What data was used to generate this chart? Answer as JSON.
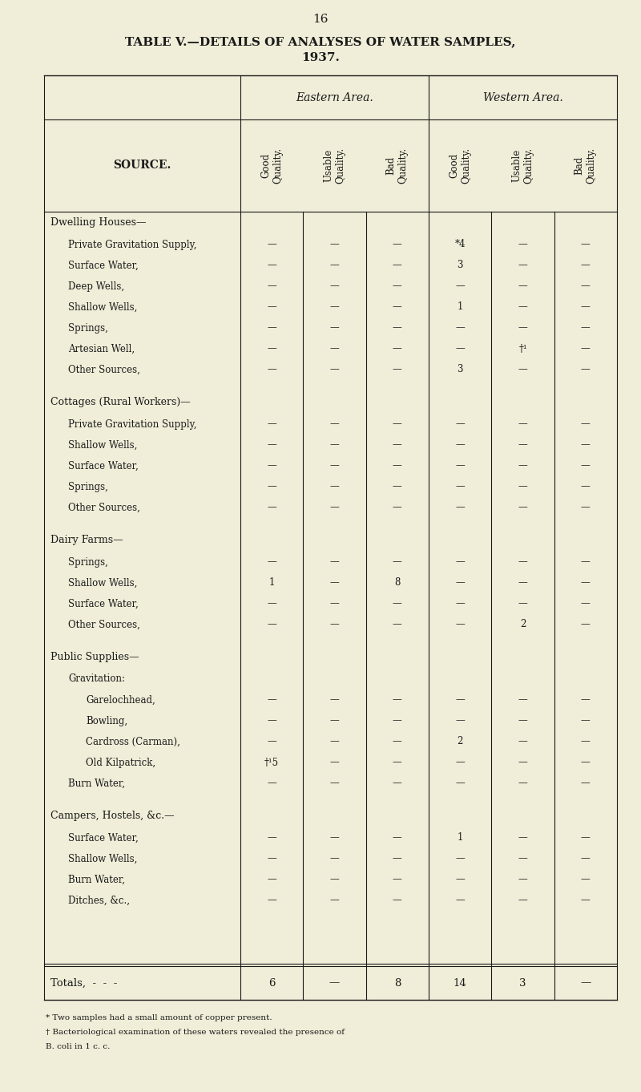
{
  "page_number": "16",
  "title_line1": "TABLE V.—DETAILS OF ANALYSES OF WATER SAMPLES,",
  "title_line2": "1937.",
  "bg_color": "#f0edd8",
  "text_color": "#1a1a1a",
  "col_headers_area1": "Eastern Area.",
  "col_headers_area2": "Western Area.",
  "col_sub_headers": [
    "Good\nQuality.",
    "Usable\nQuality.",
    "Bad\nQuality.",
    "Good\nQuality.",
    "Usable\nQuality.",
    "Bad\nQuality."
  ],
  "source_label": "SOURCE.",
  "sections": [
    {
      "header": "Dwelling Houses—",
      "rows": [
        {
          "label": "Private Gravitation Supply,",
          "dots": "  -  -  ",
          "indent": 1,
          "values": [
            "—",
            "—",
            "—",
            "*4",
            "—",
            "—"
          ]
        },
        {
          "label": "Surface Water,",
          "dots": " -     - ",
          "indent": 1,
          "values": [
            "—",
            "—",
            "—",
            "3",
            "—",
            "—"
          ]
        },
        {
          "label": "Deep Wells,",
          "dots": "   -  -  -",
          "indent": 1,
          "values": [
            "—",
            "—",
            "—",
            "—",
            "—",
            "—"
          ]
        },
        {
          "label": "Shallow Wells,",
          "dots": " -  -  -",
          "indent": 1,
          "values": [
            "—",
            "—",
            "—",
            "1",
            "—",
            "—"
          ]
        },
        {
          "label": "Springs,",
          "dots": "  -  -  -  -",
          "indent": 1,
          "values": [
            "—",
            "—",
            "—",
            "—",
            "—",
            "—"
          ]
        },
        {
          "label": "Artesian Well,",
          "dots": "  -  -",
          "indent": 1,
          "values": [
            "—",
            "—",
            "—",
            "—",
            "†¹",
            "—"
          ]
        },
        {
          "label": "Other Sources,",
          "dots": " -  -  -",
          "indent": 1,
          "values": [
            "—",
            "—",
            "—",
            "3",
            "—",
            "—"
          ]
        }
      ]
    },
    {
      "header": "Cottages (Rural Workers)—",
      "rows": [
        {
          "label": "Private Gravitation Supply,",
          "dots": "",
          "indent": 1,
          "values": [
            "—",
            "—",
            "—",
            "—",
            "—",
            "—"
          ]
        },
        {
          "label": "Shallow Wells,",
          "dots": " -  -   -",
          "indent": 1,
          "values": [
            "—",
            "—",
            "—",
            "—",
            "—",
            "—"
          ]
        },
        {
          "label": "Surface Water,",
          "dots": " -  -  -",
          "indent": 1,
          "values": [
            "—",
            "—",
            "—",
            "—",
            "—",
            "—"
          ]
        },
        {
          "label": "Springs,",
          "dots": "  -  -  -  -",
          "indent": 1,
          "values": [
            "—",
            "—",
            "—",
            "—",
            "—",
            "—"
          ]
        },
        {
          "label": "Other Sources,",
          "dots": " -  -  -",
          "indent": 1,
          "values": [
            "—",
            "—",
            "—",
            "—",
            "—",
            "—"
          ]
        }
      ]
    },
    {
      "header": "Dairy Farms—",
      "rows": [
        {
          "label": "Springs,",
          "dots": "  -  -  -  -",
          "indent": 1,
          "values": [
            "—",
            "—",
            "—",
            "—",
            "—",
            "—"
          ]
        },
        {
          "label": "Shallow Wells,",
          "dots": " -  -  -",
          "indent": 1,
          "values": [
            "1",
            "—",
            "8",
            "—",
            "—",
            "—"
          ]
        },
        {
          "label": "Surface Water,",
          "dots": " -  .  -",
          "indent": 1,
          "values": [
            "—",
            "—",
            "—",
            "—",
            "—",
            "—"
          ]
        },
        {
          "label": "Other Sources,",
          "dots": " -  -  -",
          "indent": 1,
          "values": [
            "—",
            "—",
            "—",
            "—",
            "2",
            "—"
          ]
        }
      ]
    },
    {
      "header": "Public Supplies—",
      "rows": [
        {
          "label": "Gravitation:",
          "dots": "",
          "indent": 1,
          "values": [
            "",
            "",
            "",
            "",
            "",
            ""
          ]
        },
        {
          "label": "Garelochhead,",
          "dots": "  -  -",
          "indent": 2,
          "values": [
            "—",
            "—",
            "—",
            "—",
            "—",
            "—"
          ]
        },
        {
          "label": "Bowling,",
          "dots": "  -  -  -",
          "indent": 2,
          "values": [
            "—",
            "—",
            "—",
            "—",
            "—",
            "—"
          ]
        },
        {
          "label": "Cardross (Carman),",
          "dots": "  -",
          "indent": 2,
          "values": [
            "—",
            "—",
            "—",
            "2",
            "—",
            "—"
          ]
        },
        {
          "label": "Old Kilpatrick,",
          "dots": "  -  -",
          "indent": 2,
          "values": [
            "†¹5",
            "—",
            "—",
            "—",
            "—",
            "—"
          ]
        },
        {
          "label": "Burn Water,",
          "dots": "  -  -  -",
          "indent": 1,
          "values": [
            "—",
            "—",
            "—",
            "—",
            "—",
            "—"
          ]
        }
      ]
    },
    {
      "header": "Campers, Hostels, &c.—",
      "rows": [
        {
          "label": "Surface Water,",
          "dots": " -  -  -",
          "indent": 1,
          "values": [
            "—",
            "—",
            "—",
            "1",
            "—",
            "—"
          ]
        },
        {
          "label": "Shallow Wells,",
          "dots": " -  -  -",
          "indent": 1,
          "values": [
            "—",
            "—",
            "—",
            "—",
            "—",
            "—"
          ]
        },
        {
          "label": "Burn Water,",
          "dots": "  -  -  -",
          "indent": 1,
          "values": [
            "—",
            "—",
            "—",
            "—",
            "—",
            "—"
          ]
        },
        {
          "label": "Ditches, &c.,",
          "dots": "  -  -  -",
          "indent": 1,
          "values": [
            "—",
            "—",
            "—",
            "—",
            "—",
            "—"
          ]
        }
      ]
    }
  ],
  "totals_label": "Totals,",
  "totals_dots": "  -  -  -",
  "totals_values": [
    "6",
    "—",
    "8",
    "14",
    "3",
    "—"
  ],
  "footnotes": [
    "* Two samples had a small amount of copper present.",
    "† Bacteriological examination of these waters revealed the presence of",
    "B. coli in 1 c. c."
  ]
}
